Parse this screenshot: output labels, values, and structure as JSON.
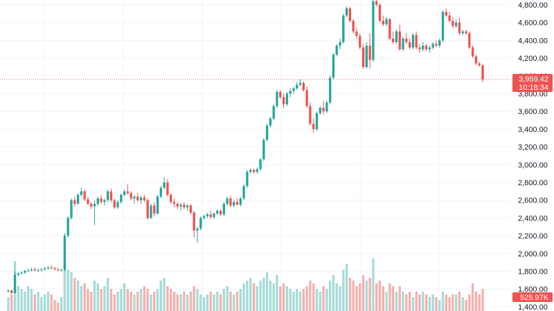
{
  "chart_data": {
    "type": "candlestick",
    "title": "",
    "xlabel": "",
    "ylabel": "",
    "ylim": [
      1400,
      4850
    ],
    "grid": true,
    "y_ticks": [
      "4,800.00",
      "4,600.00",
      "4,400.00",
      "4,200.00",
      "4,000.00",
      "3,800.00",
      "3,600.00",
      "3,400.00",
      "3,200.00",
      "3,000.00",
      "2,800.00",
      "2,600.00",
      "2,400.00",
      "2,200.00",
      "2,000.00",
      "1,800.00",
      "1,600.00",
      "1,400.00"
    ],
    "y_tick_values": [
      4800,
      4600,
      4400,
      4200,
      4000,
      3800,
      3600,
      3400,
      3200,
      3000,
      2800,
      2600,
      2400,
      2200,
      2000,
      1800,
      1600,
      1400
    ],
    "current_price": {
      "value": 3959.42,
      "label": "3,959.42",
      "countdown": "10:18:34"
    },
    "volume_label": {
      "label": "525.97K",
      "value": 525.97
    },
    "colors": {
      "up": "#26a69a",
      "down": "#ef5350",
      "up_volume": "#a6dcd6",
      "down_volume": "#f7b0ae",
      "grid": "#f0f3fa",
      "price_line": "#ef5350"
    },
    "candles": [
      [
        1575,
        1592,
        1560,
        1585
      ],
      [
        1585,
        1590,
        1545,
        1555
      ],
      [
        1555,
        1800,
        1550,
        1760
      ],
      [
        1760,
        1790,
        1740,
        1775
      ],
      [
        1775,
        1800,
        1765,
        1785
      ],
      [
        1785,
        1815,
        1770,
        1805
      ],
      [
        1805,
        1830,
        1790,
        1810
      ],
      [
        1810,
        1840,
        1800,
        1820
      ],
      [
        1820,
        1845,
        1800,
        1810
      ],
      [
        1810,
        1830,
        1790,
        1815
      ],
      [
        1815,
        1835,
        1795,
        1820
      ],
      [
        1820,
        1850,
        1810,
        1830
      ],
      [
        1830,
        1860,
        1820,
        1840
      ],
      [
        1840,
        1870,
        1825,
        1830
      ],
      [
        1830,
        1850,
        1810,
        1820
      ],
      [
        1820,
        1835,
        1800,
        1810
      ],
      [
        1810,
        1830,
        1795,
        1815
      ],
      [
        1815,
        2230,
        1800,
        2200
      ],
      [
        2200,
        2420,
        2180,
        2400
      ],
      [
        2400,
        2620,
        2380,
        2600
      ],
      [
        2600,
        2640,
        2530,
        2560
      ],
      [
        2560,
        2680,
        2550,
        2660
      ],
      [
        2660,
        2740,
        2640,
        2700
      ],
      [
        2700,
        2720,
        2590,
        2610
      ],
      [
        2610,
        2640,
        2540,
        2560
      ],
      [
        2560,
        2580,
        2500,
        2530
      ],
      [
        2530,
        2600,
        2320,
        2560
      ],
      [
        2560,
        2640,
        2540,
        2620
      ],
      [
        2620,
        2660,
        2560,
        2580
      ],
      [
        2580,
        2620,
        2540,
        2600
      ],
      [
        2600,
        2720,
        2580,
        2700
      ],
      [
        2700,
        2730,
        2580,
        2600
      ],
      [
        2600,
        2620,
        2500,
        2520
      ],
      [
        2520,
        2600,
        2500,
        2580
      ],
      [
        2580,
        2680,
        2560,
        2660
      ],
      [
        2660,
        2720,
        2640,
        2700
      ],
      [
        2700,
        2780,
        2660,
        2680
      ],
      [
        2680,
        2700,
        2600,
        2620
      ],
      [
        2620,
        2660,
        2560,
        2640
      ],
      [
        2640,
        2680,
        2580,
        2600
      ],
      [
        2600,
        2650,
        2560,
        2630
      ],
      [
        2630,
        2660,
        2580,
        2600
      ],
      [
        2600,
        2620,
        2380,
        2400
      ],
      [
        2400,
        2560,
        2390,
        2540
      ],
      [
        2540,
        2580,
        2420,
        2450
      ],
      [
        2450,
        2660,
        2440,
        2640
      ],
      [
        2640,
        2760,
        2620,
        2740
      ],
      [
        2740,
        2860,
        2720,
        2800
      ],
      [
        2800,
        2840,
        2640,
        2660
      ],
      [
        2660,
        2680,
        2560,
        2580
      ],
      [
        2580,
        2620,
        2520,
        2560
      ],
      [
        2560,
        2580,
        2500,
        2530
      ],
      [
        2530,
        2570,
        2480,
        2550
      ],
      [
        2550,
        2580,
        2500,
        2520
      ],
      [
        2520,
        2560,
        2480,
        2540
      ],
      [
        2540,
        2560,
        2440,
        2460
      ],
      [
        2460,
        2480,
        2180,
        2260
      ],
      [
        2260,
        2300,
        2120,
        2280
      ],
      [
        2280,
        2420,
        2260,
        2400
      ],
      [
        2400,
        2440,
        2380,
        2420
      ],
      [
        2420,
        2460,
        2400,
        2440
      ],
      [
        2440,
        2480,
        2390,
        2410
      ],
      [
        2410,
        2460,
        2390,
        2450
      ],
      [
        2450,
        2500,
        2430,
        2480
      ],
      [
        2480,
        2500,
        2420,
        2440
      ],
      [
        2440,
        2580,
        2420,
        2560
      ],
      [
        2560,
        2640,
        2540,
        2620
      ],
      [
        2620,
        2650,
        2520,
        2540
      ],
      [
        2540,
        2600,
        2520,
        2580
      ],
      [
        2580,
        2620,
        2540,
        2550
      ],
      [
        2550,
        2640,
        2530,
        2620
      ],
      [
        2620,
        2780,
        2600,
        2760
      ],
      [
        2760,
        2940,
        2740,
        2920
      ],
      [
        2920,
        2960,
        2900,
        2940
      ],
      [
        2940,
        2960,
        2900,
        2920
      ],
      [
        2920,
        2970,
        2900,
        2950
      ],
      [
        2950,
        3080,
        2930,
        3060
      ],
      [
        3060,
        3300,
        3040,
        3280
      ],
      [
        3280,
        3460,
        3260,
        3440
      ],
      [
        3440,
        3540,
        3420,
        3520
      ],
      [
        3520,
        3680,
        3500,
        3660
      ],
      [
        3660,
        3840,
        3640,
        3820
      ],
      [
        3820,
        3840,
        3740,
        3760
      ],
      [
        3760,
        3800,
        3640,
        3680
      ],
      [
        3680,
        3820,
        3660,
        3800
      ],
      [
        3800,
        3860,
        3760,
        3830
      ],
      [
        3830,
        3880,
        3800,
        3860
      ],
      [
        3860,
        3930,
        3840,
        3900
      ],
      [
        3900,
        3960,
        3880,
        3920
      ],
      [
        3920,
        3940,
        3820,
        3840
      ],
      [
        3840,
        3880,
        3640,
        3660
      ],
      [
        3660,
        3700,
        3440,
        3460
      ],
      [
        3460,
        3520,
        3360,
        3400
      ],
      [
        3400,
        3600,
        3380,
        3580
      ],
      [
        3580,
        3660,
        3560,
        3640
      ],
      [
        3640,
        3720,
        3560,
        3600
      ],
      [
        3600,
        3720,
        3580,
        3700
      ],
      [
        3700,
        4000,
        3680,
        3980
      ],
      [
        3980,
        4260,
        3960,
        4240
      ],
      [
        4240,
        4360,
        4220,
        4340
      ],
      [
        4340,
        4420,
        4300,
        4380
      ],
      [
        4380,
        4700,
        4360,
        4680
      ],
      [
        4680,
        4780,
        4660,
        4760
      ],
      [
        4760,
        4780,
        4600,
        4620
      ],
      [
        4620,
        4640,
        4480,
        4500
      ],
      [
        4500,
        4540,
        4420,
        4450
      ],
      [
        4450,
        4480,
        4300,
        4320
      ],
      [
        4320,
        4360,
        4080,
        4100
      ],
      [
        4100,
        4380,
        4080,
        4340
      ],
      [
        4340,
        4480,
        4080,
        4180
      ],
      [
        4180,
        4860,
        4160,
        4840
      ],
      [
        4840,
        4860,
        4780,
        4800
      ],
      [
        4800,
        4820,
        4600,
        4620
      ],
      [
        4620,
        4680,
        4560,
        4580
      ],
      [
        4580,
        4660,
        4560,
        4640
      ],
      [
        4640,
        4650,
        4400,
        4420
      ],
      [
        4420,
        4500,
        4360,
        4380
      ],
      [
        4380,
        4520,
        4360,
        4500
      ],
      [
        4500,
        4580,
        4280,
        4300
      ],
      [
        4300,
        4440,
        4280,
        4420
      ],
      [
        4420,
        4480,
        4360,
        4380
      ],
      [
        4380,
        4420,
        4300,
        4320
      ],
      [
        4320,
        4480,
        4300,
        4460
      ],
      [
        4460,
        4500,
        4300,
        4320
      ],
      [
        4320,
        4360,
        4260,
        4300
      ],
      [
        4300,
        4380,
        4280,
        4340
      ],
      [
        4340,
        4360,
        4280,
        4300
      ],
      [
        4300,
        4340,
        4260,
        4320
      ],
      [
        4320,
        4380,
        4300,
        4360
      ],
      [
        4360,
        4400,
        4320,
        4340
      ],
      [
        4340,
        4420,
        4320,
        4400
      ],
      [
        4400,
        4740,
        4380,
        4720
      ],
      [
        4720,
        4760,
        4660,
        4680
      ],
      [
        4680,
        4720,
        4600,
        4620
      ],
      [
        4620,
        4660,
        4540,
        4560
      ],
      [
        4560,
        4640,
        4540,
        4600
      ],
      [
        4600,
        4660,
        4460,
        4480
      ],
      [
        4480,
        4520,
        4460,
        4500
      ],
      [
        4500,
        4520,
        4460,
        4480
      ],
      [
        4480,
        4500,
        4300,
        4320
      ],
      [
        4320,
        4340,
        4200,
        4220
      ],
      [
        4220,
        4240,
        4120,
        4140
      ],
      [
        4140,
        4160,
        4100,
        4120
      ],
      [
        4120,
        4130,
        3930,
        3959.42
      ]
    ],
    "volume": [
      0.25,
      0.3,
      0.9,
      0.45,
      0.4,
      0.35,
      0.45,
      0.4,
      0.3,
      0.35,
      0.25,
      0.3,
      0.35,
      0.3,
      0.2,
      0.15,
      0.25,
      0.95,
      0.75,
      0.7,
      0.6,
      0.55,
      0.45,
      0.5,
      0.4,
      0.35,
      0.55,
      0.5,
      0.4,
      0.45,
      0.6,
      0.4,
      0.3,
      0.35,
      0.4,
      0.5,
      0.4,
      0.35,
      0.3,
      0.35,
      0.4,
      0.45,
      0.4,
      0.3,
      0.35,
      0.4,
      0.55,
      0.6,
      0.45,
      0.4,
      0.35,
      0.3,
      0.3,
      0.35,
      0.3,
      0.35,
      0.45,
      0.4,
      0.3,
      0.25,
      0.3,
      0.35,
      0.3,
      0.35,
      0.3,
      0.4,
      0.45,
      0.35,
      0.3,
      0.35,
      0.4,
      0.5,
      0.55,
      0.6,
      0.5,
      0.45,
      0.55,
      0.6,
      0.7,
      0.55,
      0.5,
      0.65,
      0.45,
      0.5,
      0.45,
      0.4,
      0.35,
      0.4,
      0.35,
      0.4,
      0.45,
      0.55,
      0.5,
      0.4,
      0.35,
      0.45,
      0.4,
      0.55,
      0.65,
      0.5,
      0.45,
      0.75,
      0.85,
      0.6,
      0.55,
      0.45,
      0.5,
      0.65,
      0.55,
      0.6,
      0.95,
      0.5,
      0.55,
      0.45,
      0.35,
      0.5,
      0.45,
      0.35,
      0.45,
      0.35,
      0.3,
      0.35,
      0.25,
      0.35,
      0.3,
      0.35,
      0.3,
      0.25,
      0.3,
      0.25,
      0.2,
      0.35,
      0.3,
      0.25,
      0.3,
      0.3,
      0.35,
      0.25,
      0.2,
      0.3,
      0.5,
      0.35,
      0.3,
      0.4
    ]
  }
}
